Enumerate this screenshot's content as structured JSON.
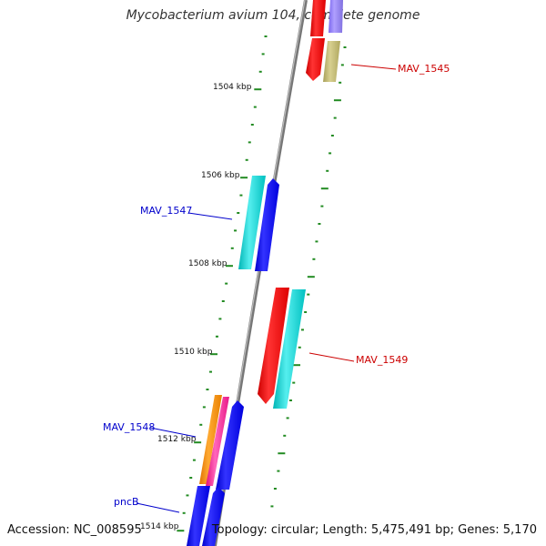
{
  "title": "Mycobacterium avium 104, complete genome",
  "footer": {
    "accession": "Accession: NC_008595",
    "stats": "Topology: circular; Length: 5,475,491 bp; Genes: 5,170"
  },
  "colors": {
    "backbone": "#888888",
    "tick": "#228B22",
    "label_red": "#cc0000",
    "label_blue": "#0000cc"
  },
  "kbp_labels": [
    "1504 kbp",
    "1506 kbp",
    "1508 kbp",
    "1510 kbp",
    "1512 kbp",
    "1514 kbp"
  ],
  "gene_labels": [
    {
      "text": "MAV_1545",
      "color": "red"
    },
    {
      "text": "MAV_1547",
      "color": "blue"
    },
    {
      "text": "MAV_1549",
      "color": "red"
    },
    {
      "text": "MAV_1548",
      "color": "blue"
    },
    {
      "text": "pncB",
      "color": "blue"
    }
  ],
  "genes": [
    {
      "name": "MAV_1545",
      "color": "#ff0000"
    },
    {
      "name": "MAV_1545-pair",
      "color": "#bdb76b"
    },
    {
      "name": "upper-lavender",
      "color": "#9370db"
    },
    {
      "name": "MAV_1547-cyan",
      "color": "#00cdcd"
    },
    {
      "name": "MAV_1547-blue",
      "color": "#0000ff"
    },
    {
      "name": "MAV_1549-red",
      "color": "#ff0000"
    },
    {
      "name": "MAV_1549-cyan",
      "color": "#00cdcd"
    },
    {
      "name": "MAV_1548-orange",
      "color": "#ff8c00"
    },
    {
      "name": "MAV_1548-pink",
      "color": "#ff1493"
    },
    {
      "name": "MAV_1548-blue",
      "color": "#0000ff"
    },
    {
      "name": "pncB-blue-1",
      "color": "#0000ff"
    },
    {
      "name": "pncB-blue-2",
      "color": "#0000ff"
    }
  ]
}
